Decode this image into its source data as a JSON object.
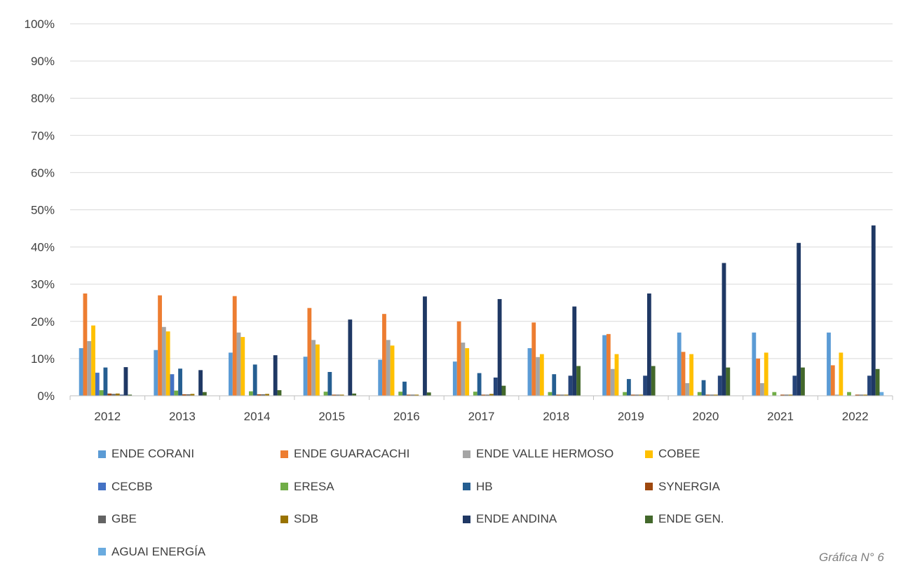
{
  "caption": "Gráfica N° 6",
  "chart_data": {
    "type": "bar",
    "title": "",
    "xlabel": "",
    "ylabel": "",
    "ylim": [
      0,
      100
    ],
    "y_ticks": [
      "0%",
      "10%",
      "20%",
      "30%",
      "40%",
      "50%",
      "60%",
      "70%",
      "80%",
      "90%",
      "100%"
    ],
    "grid": true,
    "legend_position": "bottom",
    "categories": [
      "2012",
      "2013",
      "2014",
      "2015",
      "2016",
      "2017",
      "2018",
      "2019",
      "2020",
      "2021",
      "2022"
    ],
    "series": [
      {
        "name": "ENDE CORANI",
        "color": "#5b9bd5",
        "values": [
          12.8,
          12.3,
          11.6,
          10.5,
          9.7,
          9.2,
          12.8,
          16.3,
          17.0,
          17.0,
          17.0
        ]
      },
      {
        "name": "ENDE GUARACACHI",
        "color": "#ed7d31",
        "values": [
          27.5,
          27.0,
          26.8,
          23.6,
          22.0,
          20.0,
          19.7,
          16.6,
          11.8,
          10.0,
          8.2
        ]
      },
      {
        "name": "ENDE VALLE HERMOSO",
        "color": "#a5a5a5",
        "values": [
          14.7,
          18.5,
          17.0,
          15.0,
          15.0,
          14.3,
          10.4,
          7.2,
          3.4,
          3.4,
          0.3
        ]
      },
      {
        "name": "COBEE",
        "color": "#ffc000",
        "values": [
          18.9,
          17.3,
          15.8,
          13.8,
          13.5,
          12.8,
          11.2,
          11.2,
          11.2,
          11.6,
          11.6
        ]
      },
      {
        "name": "CECBB",
        "color": "#4472c4",
        "values": [
          6.2,
          5.8,
          0.0,
          0.0,
          0.0,
          0.0,
          0.0,
          0.0,
          0.0,
          0.0,
          0.0
        ]
      },
      {
        "name": "ERESA",
        "color": "#70ad47",
        "values": [
          1.5,
          1.4,
          1.2,
          1.1,
          1.1,
          1.1,
          1.0,
          1.0,
          1.0,
          1.0,
          1.0
        ]
      },
      {
        "name": "HB",
        "color": "#255e91",
        "values": [
          7.6,
          7.3,
          8.4,
          6.4,
          3.8,
          6.1,
          5.8,
          4.5,
          4.2,
          0.0,
          0.0
        ]
      },
      {
        "name": "SYNERGIA",
        "color": "#9e480e",
        "values": [
          0.6,
          0.4,
          0.4,
          0.3,
          0.3,
          0.3,
          0.3,
          0.3,
          0.3,
          0.3,
          0.3
        ]
      },
      {
        "name": "GBE",
        "color": "#636363",
        "values": [
          0.5,
          0.4,
          0.4,
          0.3,
          0.3,
          0.3,
          0.3,
          0.3,
          0.3,
          0.3,
          0.3
        ]
      },
      {
        "name": "SDB",
        "color": "#997300",
        "values": [
          0.6,
          0.5,
          0.5,
          0.3,
          0.3,
          0.5,
          0.3,
          0.3,
          0.3,
          0.3,
          0.3
        ]
      },
      {
        "name": "ENDE ANDINA",
        "color": "#264478",
        "values": [
          0.3,
          0.0,
          0.0,
          0.0,
          0.0,
          4.9,
          5.4,
          5.4,
          5.4,
          5.4,
          5.4
        ]
      },
      {
        "name": "ENDE ANDINA",
        "color": "#1f3864",
        "values": [
          7.7,
          6.9,
          10.9,
          20.5,
          26.7,
          26.0,
          24.0,
          27.5,
          35.7,
          41.1,
          45.8
        ]
      },
      {
        "name": "ENDE GEN.",
        "color": "#43682b",
        "values": [
          0.3,
          1.0,
          1.5,
          0.6,
          0.9,
          2.7,
          8.0,
          8.0,
          7.6,
          7.6,
          7.2
        ]
      },
      {
        "name": "AGUAI ENERGÍA",
        "color": "#6aabdf",
        "values": [
          0.0,
          0.0,
          0.0,
          0.0,
          0.0,
          0.0,
          0.0,
          0.0,
          0.0,
          0.0,
          1.0
        ]
      }
    ],
    "legend": [
      {
        "name": "ENDE CORANI",
        "color": "#5b9bd5"
      },
      {
        "name": "ENDE GUARACACHI",
        "color": "#ed7d31"
      },
      {
        "name": "ENDE VALLE HERMOSO",
        "color": "#a5a5a5"
      },
      {
        "name": "COBEE",
        "color": "#ffc000"
      },
      {
        "name": "CECBB",
        "color": "#4472c4"
      },
      {
        "name": "ERESA",
        "color": "#70ad47"
      },
      {
        "name": "HB",
        "color": "#255e91"
      },
      {
        "name": "SYNERGIA",
        "color": "#9e480e"
      },
      {
        "name": "GBE",
        "color": "#636363"
      },
      {
        "name": "SDB",
        "color": "#997300"
      },
      {
        "name": "ENDE ANDINA",
        "color": "#1f3864"
      },
      {
        "name": "ENDE GEN.",
        "color": "#43682b"
      },
      {
        "name": "AGUAI ENERGÍA",
        "color": "#6aabdf"
      }
    ]
  }
}
